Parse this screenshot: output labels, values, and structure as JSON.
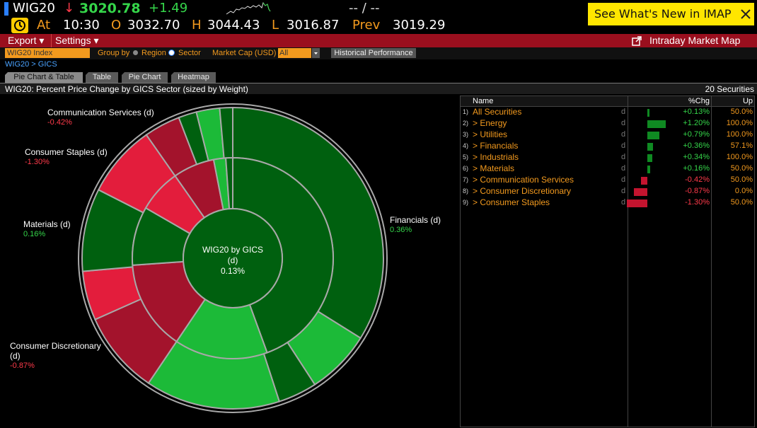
{
  "header": {
    "ticker": "WIG20",
    "arrow": "↓",
    "last": "3020.78",
    "change": "+1.49",
    "range": "-- / --",
    "whats_new": "See What's New in IMAP",
    "at_label": "At",
    "time": "10:30",
    "open_label": "O",
    "open": "3032.70",
    "high_label": "H",
    "high": "3044.43",
    "low_label": "L",
    "low": "3016.87",
    "prev_label": "Prev",
    "prev": "3019.29"
  },
  "toolbar": {
    "export": "Export ▾",
    "settings": "Settings ▾",
    "map_link": "Intraday Market Map"
  },
  "controls": {
    "index": "WIG20 Index",
    "group_by": "Group by",
    "region": "Region",
    "sector": "Sector",
    "market_cap": "Market Cap (USD)",
    "cap_value": "All",
    "historical": "Historical Performance"
  },
  "breadcrumb": "WIG20 > GICS",
  "tabs": [
    "Pie Chart & Table",
    "Table",
    "Pie Chart",
    "Heatmap"
  ],
  "panel": {
    "title": "WIG20: Percent Price Change by GICS Sector (sized by Weight)",
    "count": "20 Securities"
  },
  "chart": {
    "center_title": "WIG20 by GICS",
    "center_sub": "(d)",
    "center_value": "0.13%",
    "labels": [
      {
        "name": "Communication Services (d)",
        "value": "-0.42%"
      },
      {
        "name": "Consumer Staples (d)",
        "value": "-1.30%"
      },
      {
        "name": "Materials (d)",
        "value": "0.16%"
      },
      {
        "name": "Financials (d)",
        "value": "0.36%"
      },
      {
        "name": "Consumer Discretionary",
        "sub": "(d)",
        "value": "-0.87%"
      }
    ]
  },
  "table": {
    "columns": [
      "Name",
      "%Chg",
      "Up"
    ],
    "rows": [
      {
        "num": "1)",
        "name": "All Securities",
        "flag": "d",
        "chg": "+0.13%",
        "up": "50.0%"
      },
      {
        "num": "2)",
        "name": "> Energy",
        "flag": "d",
        "chg": "+1.20%",
        "up": "100.0%"
      },
      {
        "num": "3)",
        "name": "> Utilities",
        "flag": "d",
        "chg": "+0.79%",
        "up": "100.0%"
      },
      {
        "num": "4)",
        "name": "> Financials",
        "flag": "d",
        "chg": "+0.36%",
        "up": "57.1%"
      },
      {
        "num": "5)",
        "name": "> Industrials",
        "flag": "d",
        "chg": "+0.34%",
        "up": "100.0%"
      },
      {
        "num": "6)",
        "name": "> Materials",
        "flag": "d",
        "chg": "+0.16%",
        "up": "50.0%"
      },
      {
        "num": "7)",
        "name": "> Communication Services",
        "flag": "d",
        "chg": "-0.42%",
        "up": "50.0%"
      },
      {
        "num": "8)",
        "name": "> Consumer Discretionary",
        "flag": "d",
        "chg": "-0.87%",
        "up": "0.0%"
      },
      {
        "num": "9)",
        "name": "> Consumer Staples",
        "flag": "d",
        "chg": "-1.30%",
        "up": "50.0%"
      }
    ]
  }
}
